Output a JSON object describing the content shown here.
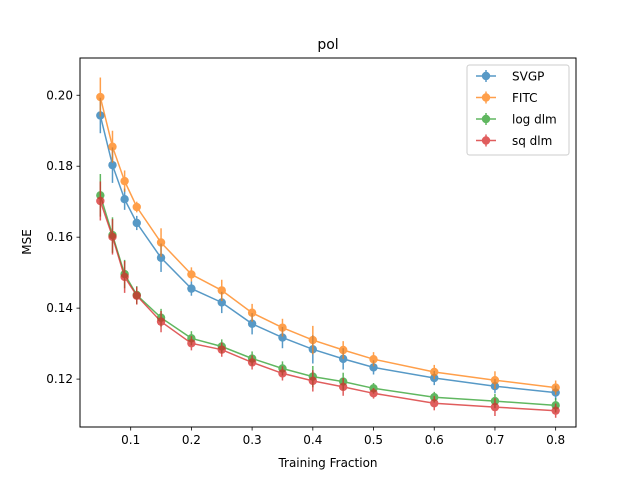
{
  "chart_data": {
    "type": "line",
    "title": "pol",
    "xlabel": "Training Fraction",
    "ylabel": "MSE",
    "xlim": [
      0.0165,
      0.8335
    ],
    "ylim": [
      0.1065,
      0.2105
    ],
    "x_ticks": [
      0.1,
      0.2,
      0.3,
      0.4,
      0.5,
      0.6,
      0.7,
      0.8
    ],
    "y_ticks": [
      0.12,
      0.14,
      0.16,
      0.18,
      0.2
    ],
    "x_tick_labels": [
      "0.1",
      "0.2",
      "0.3",
      "0.4",
      "0.5",
      "0.6",
      "0.7",
      "0.8"
    ],
    "y_tick_labels": [
      "0.12",
      "0.14",
      "0.16",
      "0.18",
      "0.20"
    ],
    "grid": false,
    "legend_position": "top-right",
    "x": [
      0.05,
      0.07,
      0.09,
      0.11,
      0.15,
      0.2,
      0.25,
      0.3,
      0.35,
      0.4,
      0.45,
      0.5,
      0.6,
      0.7,
      0.8
    ],
    "series": [
      {
        "name": "SVGP",
        "color": "#1f77b4",
        "values": [
          0.1943,
          0.1803,
          0.1707,
          0.164,
          0.1542,
          0.1455,
          0.1416,
          0.1356,
          0.1317,
          0.1284,
          0.1257,
          0.1233,
          0.1203,
          0.118,
          0.1162
        ],
        "errors": [
          0.005,
          0.005,
          0.003,
          0.002,
          0.004,
          0.002,
          0.003,
          0.003,
          0.003,
          0.004,
          0.003,
          0.002,
          0.002,
          0.002,
          0.002
        ]
      },
      {
        "name": "FITC",
        "color": "#ff7f0e",
        "values": [
          0.1995,
          0.1855,
          0.1758,
          0.1685,
          0.1585,
          0.1495,
          0.145,
          0.1387,
          0.1345,
          0.131,
          0.1282,
          0.1256,
          0.122,
          0.1197,
          0.1176
        ],
        "errors": [
          0.0055,
          0.0045,
          0.003,
          0.0015,
          0.004,
          0.002,
          0.003,
          0.0025,
          0.0025,
          0.004,
          0.0025,
          0.002,
          0.002,
          0.0025,
          0.002
        ]
      },
      {
        "name": "log dlm",
        "color": "#2ca02c",
        "values": [
          0.1718,
          0.1606,
          0.1496,
          0.1437,
          0.1373,
          0.1315,
          0.1292,
          0.1258,
          0.123,
          0.1207,
          0.1193,
          0.1174,
          0.1149,
          0.1138,
          0.1126
        ],
        "errors": [
          0.006,
          0.005,
          0.004,
          0.0025,
          0.0025,
          0.002,
          0.002,
          0.002,
          0.002,
          0.003,
          0.0025,
          0.0015,
          0.0015,
          0.002,
          0.002
        ]
      },
      {
        "name": "sq dlm",
        "color": "#d62728",
        "values": [
          0.1702,
          0.1601,
          0.1488,
          0.1435,
          0.1362,
          0.1301,
          0.1283,
          0.1247,
          0.1216,
          0.1195,
          0.1178,
          0.116,
          0.1132,
          0.1121,
          0.1111
        ],
        "errors": [
          0.0055,
          0.005,
          0.0045,
          0.0025,
          0.003,
          0.002,
          0.002,
          0.002,
          0.002,
          0.003,
          0.0025,
          0.0015,
          0.002,
          0.0025,
          0.002
        ]
      }
    ]
  }
}
